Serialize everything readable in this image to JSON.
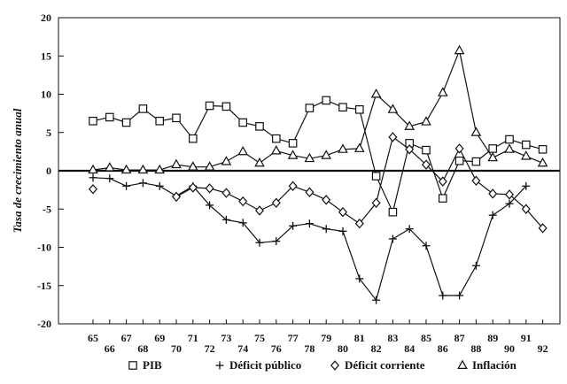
{
  "chart_data": {
    "type": "line",
    "title": "",
    "xlabel": "",
    "ylabel": "Tasa de crecimiento anual",
    "ylim": [
      -20,
      20
    ],
    "yticks": [
      20,
      15,
      10,
      5,
      0,
      -5,
      -10,
      -15,
      -20
    ],
    "categories": [
      "65",
      "66",
      "67",
      "68",
      "69",
      "70",
      "71",
      "72",
      "73",
      "74",
      "75",
      "76",
      "77",
      "78",
      "79",
      "80",
      "81",
      "82",
      "83",
      "84",
      "85",
      "86",
      "87",
      "88",
      "89",
      "90",
      "91",
      "92"
    ],
    "legend_position": "bottom",
    "grid": false,
    "series": [
      {
        "name": "PIB",
        "marker": "square",
        "values": [
          6.5,
          7.0,
          6.3,
          8.1,
          6.5,
          6.9,
          4.2,
          8.5,
          8.4,
          6.3,
          5.8,
          4.2,
          3.6,
          8.2,
          9.2,
          8.3,
          8.0,
          -0.7,
          -5.4,
          3.6,
          2.7,
          -3.6,
          1.3,
          1.2,
          2.9,
          4.1,
          3.4,
          2.8
        ]
      },
      {
        "name": "Déficit público",
        "marker": "plus",
        "values": [
          -0.9,
          -1.0,
          -2.0,
          -1.6,
          -2.0,
          -3.3,
          -2.0,
          -4.5,
          -6.4,
          -6.8,
          -9.4,
          -9.2,
          -7.2,
          -6.9,
          -7.6,
          -7.9,
          -14.1,
          -16.9,
          -8.9,
          -7.6,
          -9.8,
          -16.3,
          -16.3,
          -12.4,
          -5.8,
          -4.3,
          -2.0,
          null
        ]
      },
      {
        "name": "Déficit corriente",
        "marker": "diamond",
        "values": [
          -2.4,
          null,
          null,
          null,
          null,
          -3.4,
          -2.2,
          -2.3,
          -2.9,
          -4.0,
          -5.2,
          -4.2,
          -2.0,
          -2.8,
          -3.8,
          -5.4,
          -6.9,
          -4.2,
          4.4,
          2.8,
          0.8,
          -1.4,
          2.9,
          -1.3,
          -3.0,
          -3.1,
          -5.0,
          -7.5
        ]
      },
      {
        "name": "Inflación",
        "marker": "triangle",
        "values": [
          0.1,
          0.4,
          0.1,
          0.1,
          0.1,
          0.8,
          0.5,
          0.5,
          1.2,
          2.5,
          1.0,
          2.6,
          2.0,
          1.6,
          2.0,
          2.8,
          2.9,
          10.0,
          8.0,
          5.8,
          6.4,
          10.2,
          15.7,
          5.0,
          1.7,
          2.8,
          1.9,
          1.0
        ]
      }
    ]
  }
}
